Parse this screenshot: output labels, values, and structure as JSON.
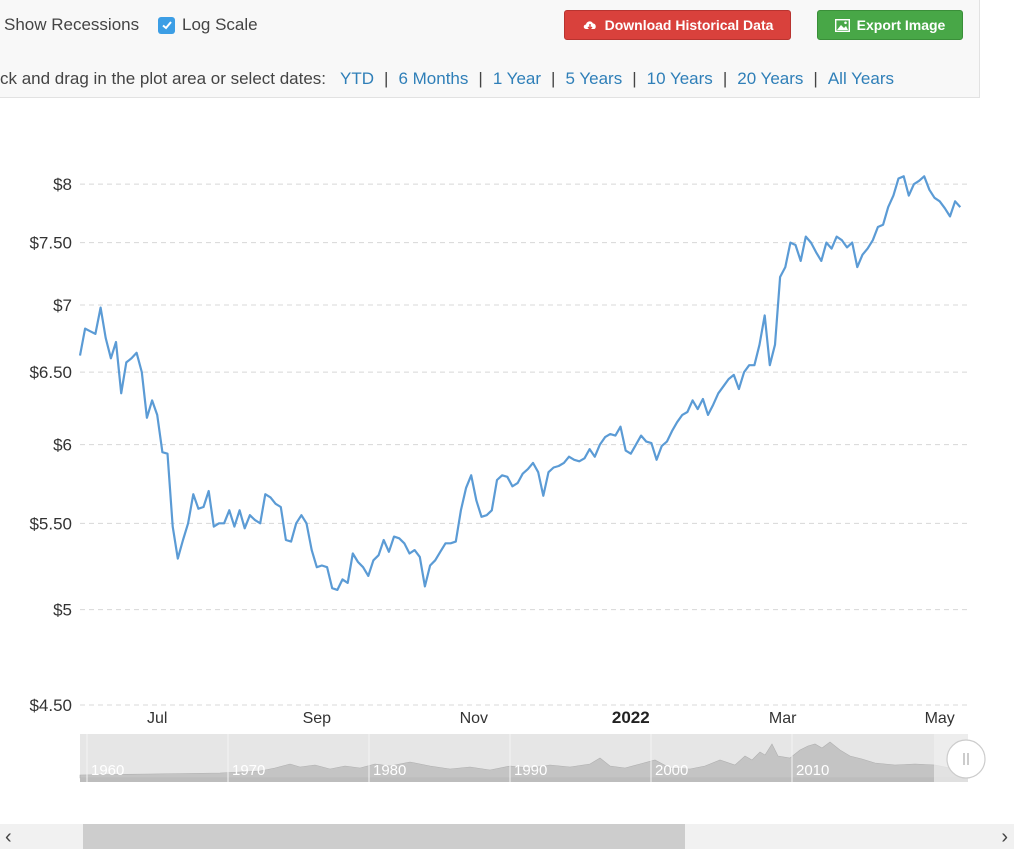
{
  "controls": {
    "show_recessions_label": "Show Recessions",
    "log_scale_label": "Log Scale",
    "log_scale_checked": true,
    "download_label": "Download Historical Data",
    "export_label": "Export Image",
    "range_prompt": "ck and drag in the plot area or select dates:",
    "ranges": [
      "YTD",
      "6 Months",
      "1 Year",
      "5 Years",
      "10 Years",
      "20 Years",
      "All Years"
    ],
    "accent_colors": {
      "download": "#d9413c",
      "export": "#48a747",
      "link": "#2f7fb8",
      "checkbox": "#3c9ee5"
    }
  },
  "chart_data": {
    "type": "line",
    "log_scale": true,
    "grid": true,
    "ylim": [
      4.5,
      8.4
    ],
    "y_ticks": [
      4.5,
      5,
      5.5,
      6,
      6.5,
      7,
      7.5,
      8
    ],
    "y_tick_labels": [
      "$4.50",
      "$5",
      "$5.50",
      "$6",
      "$6.50",
      "$7",
      "$7.50",
      "$8"
    ],
    "xlim": [
      "2021-06-01",
      "2022-05-12"
    ],
    "x_ticks": [
      {
        "date": "2021-07-01",
        "label": "Jul",
        "bold": false
      },
      {
        "date": "2021-09-01",
        "label": "Sep",
        "bold": false
      },
      {
        "date": "2021-11-01",
        "label": "Nov",
        "bold": false
      },
      {
        "date": "2022-01-01",
        "label": "2022",
        "bold": true
      },
      {
        "date": "2022-03-01",
        "label": "Mar",
        "bold": false
      },
      {
        "date": "2022-05-01",
        "label": "May",
        "bold": false
      }
    ],
    "line_color": "#5b9bd5",
    "series": [
      {
        "x": [
          "2021-06-01",
          "2021-06-03",
          "2021-06-05",
          "2021-06-07",
          "2021-06-09",
          "2021-06-11",
          "2021-06-13",
          "2021-06-15",
          "2021-06-17",
          "2021-06-19",
          "2021-06-21",
          "2021-06-23",
          "2021-06-25",
          "2021-06-27",
          "2021-06-29",
          "2021-07-01",
          "2021-07-03",
          "2021-07-05",
          "2021-07-07",
          "2021-07-09",
          "2021-07-11",
          "2021-07-13",
          "2021-07-15",
          "2021-07-17",
          "2021-07-19",
          "2021-07-21",
          "2021-07-23",
          "2021-07-25",
          "2021-07-27",
          "2021-07-29",
          "2021-07-31",
          "2021-08-02",
          "2021-08-04",
          "2021-08-06",
          "2021-08-08",
          "2021-08-10",
          "2021-08-12",
          "2021-08-14",
          "2021-08-16",
          "2021-08-18",
          "2021-08-20",
          "2021-08-22",
          "2021-08-24",
          "2021-08-26",
          "2021-08-28",
          "2021-08-30",
          "2021-09-01",
          "2021-09-03",
          "2021-09-05",
          "2021-09-07",
          "2021-09-09",
          "2021-09-11",
          "2021-09-13",
          "2021-09-15",
          "2021-09-17",
          "2021-09-19",
          "2021-09-21",
          "2021-09-23",
          "2021-09-25",
          "2021-09-27",
          "2021-09-29",
          "2021-10-01",
          "2021-10-03",
          "2021-10-05",
          "2021-10-07",
          "2021-10-09",
          "2021-10-11",
          "2021-10-13",
          "2021-10-15",
          "2021-10-17",
          "2021-10-19",
          "2021-10-21",
          "2021-10-23",
          "2021-10-25",
          "2021-10-27",
          "2021-10-29",
          "2021-10-31",
          "2021-11-02",
          "2021-11-04",
          "2021-11-06",
          "2021-11-08",
          "2021-11-10",
          "2021-11-12",
          "2021-11-14",
          "2021-11-16",
          "2021-11-18",
          "2021-11-20",
          "2021-11-22",
          "2021-11-24",
          "2021-11-26",
          "2021-11-28",
          "2021-11-30",
          "2021-12-02",
          "2021-12-04",
          "2021-12-06",
          "2021-12-08",
          "2021-12-10",
          "2021-12-12",
          "2021-12-14",
          "2021-12-16",
          "2021-12-18",
          "2021-12-20",
          "2021-12-22",
          "2021-12-24",
          "2021-12-26",
          "2021-12-28",
          "2021-12-30",
          "2022-01-01",
          "2022-01-03",
          "2022-01-05",
          "2022-01-07",
          "2022-01-09",
          "2022-01-11",
          "2022-01-13",
          "2022-01-15",
          "2022-01-17",
          "2022-01-19",
          "2022-01-21",
          "2022-01-23",
          "2022-01-25",
          "2022-01-27",
          "2022-01-29",
          "2022-01-31",
          "2022-02-02",
          "2022-02-04",
          "2022-02-06",
          "2022-02-08",
          "2022-02-10",
          "2022-02-12",
          "2022-02-14",
          "2022-02-16",
          "2022-02-18",
          "2022-02-20",
          "2022-02-22",
          "2022-02-24",
          "2022-02-26",
          "2022-02-28",
          "2022-03-02",
          "2022-03-04",
          "2022-03-06",
          "2022-03-08",
          "2022-03-10",
          "2022-03-12",
          "2022-03-14",
          "2022-03-16",
          "2022-03-18",
          "2022-03-20",
          "2022-03-22",
          "2022-03-24",
          "2022-03-26",
          "2022-03-28",
          "2022-03-30",
          "2022-04-01",
          "2022-04-03",
          "2022-04-05",
          "2022-04-07",
          "2022-04-09",
          "2022-04-11",
          "2022-04-13",
          "2022-04-15",
          "2022-04-17",
          "2022-04-19",
          "2022-04-21",
          "2022-04-23",
          "2022-04-25",
          "2022-04-27",
          "2022-04-29",
          "2022-05-01",
          "2022-05-03",
          "2022-05-05",
          "2022-05-07",
          "2022-05-09"
        ],
        "y": [
          6.62,
          6.82,
          6.8,
          6.78,
          6.98,
          6.75,
          6.6,
          6.72,
          6.35,
          6.57,
          6.6,
          6.64,
          6.5,
          6.18,
          6.3,
          6.2,
          5.95,
          5.94,
          5.48,
          5.29,
          5.4,
          5.5,
          5.68,
          5.59,
          5.6,
          5.7,
          5.48,
          5.5,
          5.5,
          5.58,
          5.48,
          5.58,
          5.47,
          5.55,
          5.52,
          5.5,
          5.68,
          5.66,
          5.62,
          5.6,
          5.4,
          5.39,
          5.5,
          5.55,
          5.5,
          5.34,
          5.24,
          5.25,
          5.24,
          5.12,
          5.11,
          5.17,
          5.15,
          5.32,
          5.27,
          5.24,
          5.19,
          5.28,
          5.31,
          5.4,
          5.33,
          5.42,
          5.41,
          5.38,
          5.32,
          5.34,
          5.3,
          5.13,
          5.25,
          5.28,
          5.33,
          5.38,
          5.38,
          5.39,
          5.58,
          5.72,
          5.8,
          5.64,
          5.54,
          5.55,
          5.58,
          5.77,
          5.8,
          5.79,
          5.73,
          5.75,
          5.81,
          5.84,
          5.88,
          5.82,
          5.67,
          5.82,
          5.85,
          5.86,
          5.88,
          5.92,
          5.9,
          5.89,
          5.91,
          5.97,
          5.92,
          6.0,
          6.05,
          6.07,
          6.06,
          6.12,
          5.96,
          5.94,
          6.0,
          6.06,
          6.02,
          6.01,
          5.9,
          5.99,
          6.02,
          6.09,
          6.15,
          6.2,
          6.22,
          6.3,
          6.24,
          6.31,
          6.2,
          6.27,
          6.35,
          6.4,
          6.45,
          6.48,
          6.38,
          6.5,
          6.55,
          6.55,
          6.7,
          6.92,
          6.55,
          6.7,
          7.22,
          7.3,
          7.5,
          7.48,
          7.35,
          7.55,
          7.5,
          7.42,
          7.35,
          7.5,
          7.45,
          7.55,
          7.52,
          7.46,
          7.5,
          7.3,
          7.4,
          7.45,
          7.52,
          7.63,
          7.65,
          7.8,
          7.9,
          8.05,
          8.07,
          7.9,
          8.0,
          8.03,
          8.07,
          7.95,
          7.88,
          7.85,
          7.79,
          7.72,
          7.85,
          7.8
        ]
      }
    ]
  },
  "navigator": {
    "labels": [
      "1960",
      "1970",
      "1980",
      "1990",
      "2000",
      "2010"
    ]
  },
  "scrollbar": {
    "left_arrow": "‹",
    "right_arrow": "›"
  }
}
